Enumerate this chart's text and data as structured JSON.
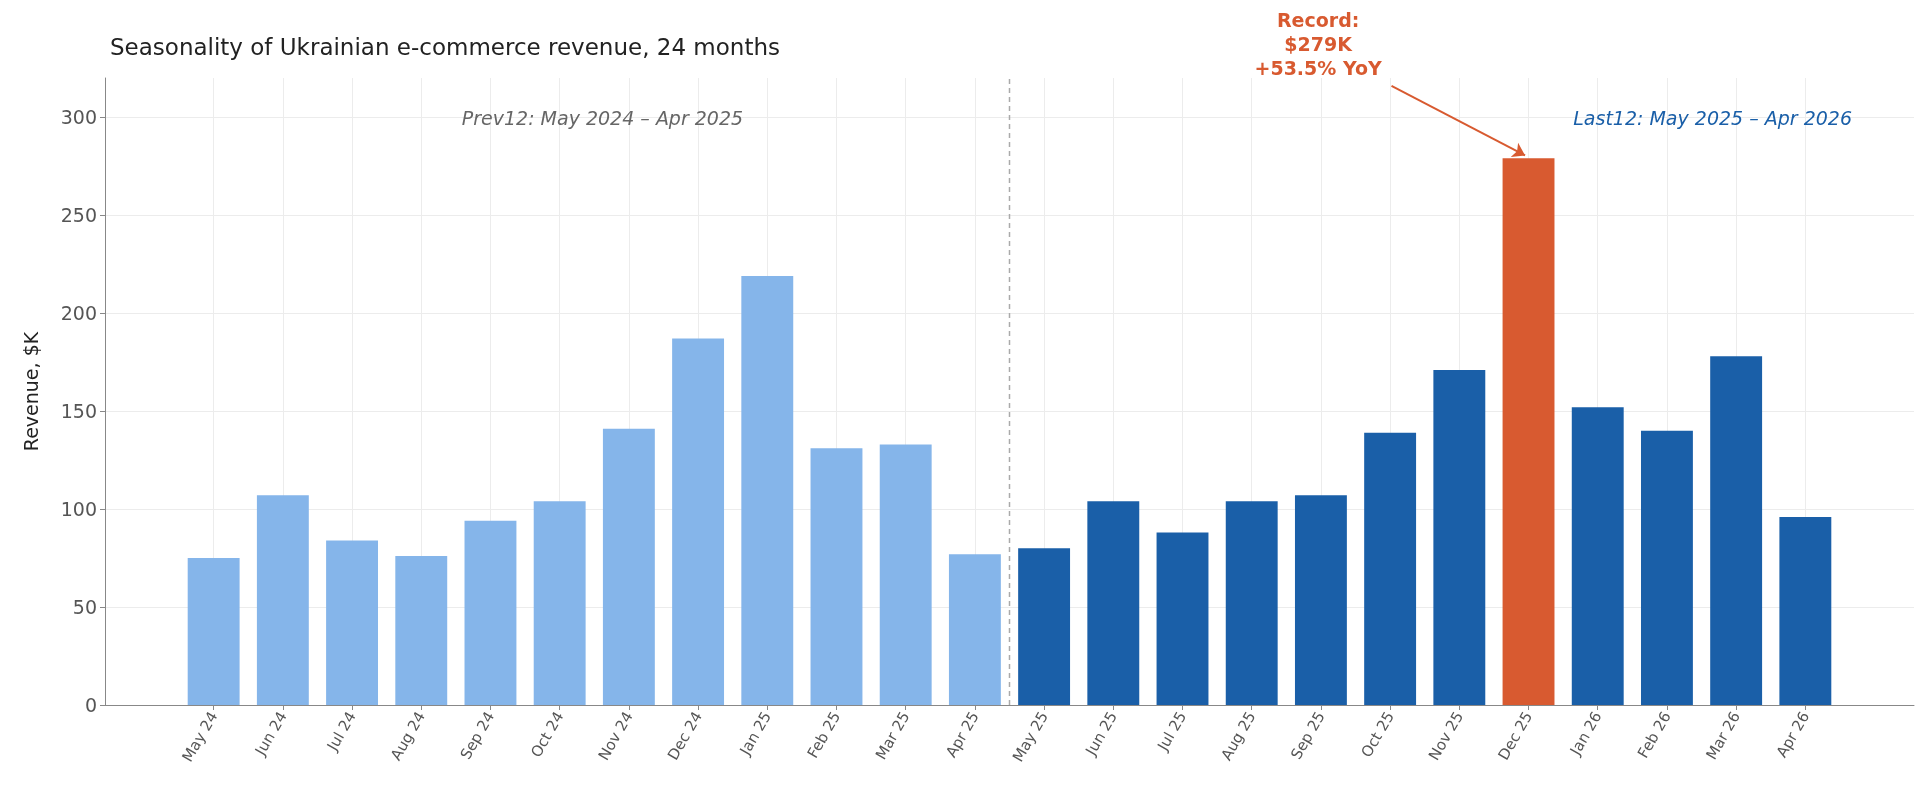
{
  "chart_data": {
    "type": "bar",
    "title": "Seasonality of Ukrainian e-commerce revenue, 24 months",
    "ylabel": "Revenue, $K",
    "categories": [
      "May 24",
      "Jun 24",
      "Jul 24",
      "Aug 24",
      "Sep 24",
      "Oct 24",
      "Nov 24",
      "Dec 24",
      "Jan 25",
      "Feb 25",
      "Mar 25",
      "Apr 25",
      "May 25",
      "Jun 25",
      "Jul 25",
      "Aug 25",
      "Sep 25",
      "Oct 25",
      "Nov 25",
      "Dec 25",
      "Jan 26",
      "Feb 26",
      "Mar 26",
      "Apr 26"
    ],
    "values": [
      75,
      107,
      84,
      76,
      94,
      104,
      141,
      187,
      219,
      131,
      133,
      77,
      80,
      104,
      88,
      104,
      107,
      139,
      171,
      279,
      152,
      140,
      178,
      96
    ],
    "colors": [
      "#85b5ea",
      "#85b5ea",
      "#85b5ea",
      "#85b5ea",
      "#85b5ea",
      "#85b5ea",
      "#85b5ea",
      "#85b5ea",
      "#85b5ea",
      "#85b5ea",
      "#85b5ea",
      "#85b5ea",
      "#1a5fa8",
      "#1a5fa8",
      "#1a5fa8",
      "#1a5fa8",
      "#1a5fa8",
      "#1a5fa8",
      "#1a5fa8",
      "#d85a30",
      "#1a5fa8",
      "#1a5fa8",
      "#1a5fa8",
      "#1a5fa8"
    ],
    "ylim": [
      0,
      320
    ],
    "yticks": [
      0,
      50,
      100,
      150,
      200,
      250,
      300
    ],
    "grid": true,
    "ref_lines": [
      {
        "axis": "x",
        "value": "May 25",
        "color": "#aaaaaa",
        "line_style": "dashed"
      }
    ],
    "annotations": [
      "Prev12: May 2024 – Apr 2025",
      "Last12: May 2025 – Apr 2026",
      {
        "text": "Record:\n$279K\n+53.5% YoY",
        "x": "Dec 25",
        "y": 279
      }
    ]
  }
}
